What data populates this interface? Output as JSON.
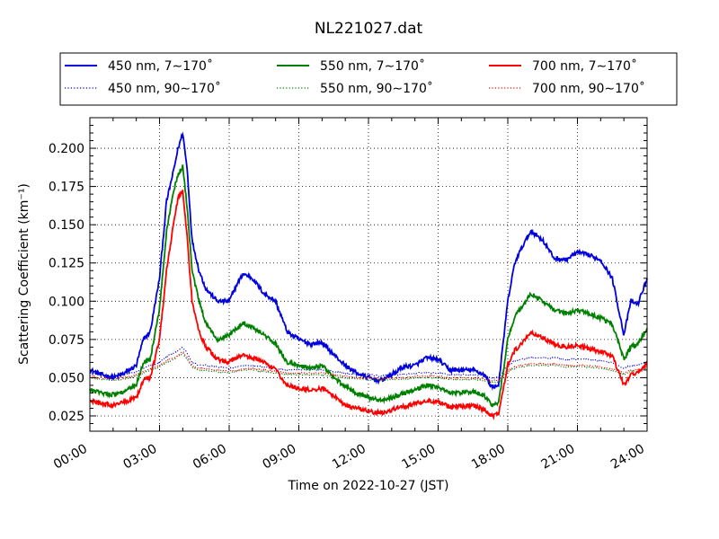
{
  "chart_data": {
    "type": "line",
    "title": "NL221027.dat",
    "xlabel": "Time on 2022-10-27 (JST)",
    "ylabel": "Scattering Coefficient (km⁻¹)",
    "xlim": [
      0,
      24
    ],
    "ylim": [
      0.015,
      0.22
    ],
    "xticks": [
      "00:00",
      "03:00",
      "06:00",
      "09:00",
      "12:00",
      "15:00",
      "18:00",
      "21:00",
      "24:00"
    ],
    "yticks": [
      "0.025",
      "0.050",
      "0.075",
      "0.100",
      "0.125",
      "0.150",
      "0.175",
      "0.200"
    ],
    "grid": true,
    "legend_position": "top",
    "x_hours": [
      0,
      0.5,
      1,
      1.5,
      2,
      2.3,
      2.6,
      3,
      3.3,
      3.6,
      3.8,
      4,
      4.2,
      4.4,
      4.7,
      5,
      5.5,
      6,
      6.3,
      6.6,
      7,
      7.5,
      8,
      8.5,
      9,
      9.5,
      10,
      10.5,
      11,
      11.5,
      12,
      12.5,
      13,
      13.5,
      14,
      14.5,
      15,
      15.5,
      16,
      16.5,
      17,
      17.3,
      17.6,
      18,
      18.3,
      18.6,
      19,
      19.5,
      20,
      20.5,
      21,
      21.5,
      22,
      22.5,
      23,
      23.3,
      23.6,
      24
    ],
    "series": [
      {
        "name": "450 nm, 7∼170˚",
        "color": "#0000dd",
        "style": "solid",
        "values": [
          0.055,
          0.052,
          0.05,
          0.053,
          0.058,
          0.075,
          0.08,
          0.115,
          0.165,
          0.185,
          0.2,
          0.21,
          0.185,
          0.14,
          0.12,
          0.108,
          0.1,
          0.1,
          0.11,
          0.118,
          0.115,
          0.105,
          0.1,
          0.08,
          0.075,
          0.072,
          0.073,
          0.065,
          0.058,
          0.053,
          0.05,
          0.048,
          0.052,
          0.057,
          0.058,
          0.063,
          0.062,
          0.055,
          0.055,
          0.055,
          0.052,
          0.044,
          0.045,
          0.1,
          0.125,
          0.135,
          0.146,
          0.14,
          0.128,
          0.127,
          0.132,
          0.13,
          0.127,
          0.115,
          0.078,
          0.1,
          0.098,
          0.115
        ]
      },
      {
        "name": "450 nm, 90∼170˚",
        "color": "#0000dd",
        "style": "dotted",
        "values": [
          0.053,
          0.052,
          0.05,
          0.052,
          0.054,
          0.056,
          0.058,
          0.06,
          0.064,
          0.066,
          0.068,
          0.07,
          0.066,
          0.06,
          0.058,
          0.058,
          0.057,
          0.056,
          0.057,
          0.058,
          0.058,
          0.057,
          0.056,
          0.055,
          0.055,
          0.055,
          0.055,
          0.054,
          0.053,
          0.052,
          0.052,
          0.051,
          0.052,
          0.052,
          0.053,
          0.053,
          0.053,
          0.052,
          0.052,
          0.052,
          0.051,
          0.05,
          0.05,
          0.058,
          0.061,
          0.062,
          0.063,
          0.063,
          0.063,
          0.062,
          0.062,
          0.062,
          0.061,
          0.06,
          0.056,
          0.058,
          0.058,
          0.06
        ]
      },
      {
        "name": "550 nm, 7∼170˚",
        "color": "#008000",
        "style": "solid",
        "values": [
          0.042,
          0.04,
          0.039,
          0.041,
          0.045,
          0.06,
          0.062,
          0.095,
          0.145,
          0.172,
          0.183,
          0.188,
          0.16,
          0.12,
          0.1,
          0.085,
          0.075,
          0.078,
          0.082,
          0.086,
          0.083,
          0.078,
          0.072,
          0.06,
          0.058,
          0.056,
          0.058,
          0.05,
          0.044,
          0.04,
          0.037,
          0.035,
          0.037,
          0.04,
          0.042,
          0.045,
          0.044,
          0.04,
          0.04,
          0.041,
          0.038,
          0.032,
          0.033,
          0.075,
          0.09,
          0.096,
          0.105,
          0.1,
          0.094,
          0.092,
          0.094,
          0.092,
          0.089,
          0.085,
          0.062,
          0.07,
          0.072,
          0.082
        ]
      },
      {
        "name": "550 nm, 90∼170˚",
        "color": "#008000",
        "style": "dotted",
        "values": [
          0.05,
          0.049,
          0.048,
          0.049,
          0.051,
          0.053,
          0.055,
          0.057,
          0.06,
          0.062,
          0.064,
          0.066,
          0.062,
          0.057,
          0.055,
          0.055,
          0.054,
          0.053,
          0.054,
          0.055,
          0.055,
          0.054,
          0.053,
          0.052,
          0.052,
          0.052,
          0.052,
          0.051,
          0.05,
          0.049,
          0.049,
          0.048,
          0.049,
          0.049,
          0.05,
          0.05,
          0.05,
          0.049,
          0.049,
          0.049,
          0.048,
          0.047,
          0.047,
          0.054,
          0.056,
          0.057,
          0.058,
          0.058,
          0.058,
          0.057,
          0.057,
          0.057,
          0.056,
          0.055,
          0.052,
          0.054,
          0.054,
          0.056
        ]
      },
      {
        "name": "700 nm, 7∼170˚",
        "color": "#ff0000",
        "style": "solid",
        "values": [
          0.035,
          0.033,
          0.032,
          0.034,
          0.037,
          0.048,
          0.05,
          0.075,
          0.12,
          0.15,
          0.168,
          0.172,
          0.14,
          0.1,
          0.08,
          0.07,
          0.062,
          0.06,
          0.063,
          0.065,
          0.063,
          0.06,
          0.055,
          0.045,
          0.043,
          0.042,
          0.043,
          0.038,
          0.032,
          0.03,
          0.028,
          0.027,
          0.029,
          0.031,
          0.033,
          0.035,
          0.034,
          0.031,
          0.031,
          0.032,
          0.029,
          0.025,
          0.026,
          0.058,
          0.068,
          0.072,
          0.08,
          0.076,
          0.072,
          0.07,
          0.071,
          0.069,
          0.067,
          0.064,
          0.045,
          0.052,
          0.053,
          0.06
        ]
      },
      {
        "name": "700 nm, 90∼170˚",
        "color": "#ff0000",
        "style": "dotted",
        "values": [
          0.051,
          0.05,
          0.049,
          0.05,
          0.052,
          0.054,
          0.056,
          0.058,
          0.061,
          0.063,
          0.065,
          0.067,
          0.063,
          0.058,
          0.056,
          0.056,
          0.055,
          0.054,
          0.055,
          0.056,
          0.056,
          0.055,
          0.054,
          0.053,
          0.053,
          0.053,
          0.053,
          0.052,
          0.051,
          0.05,
          0.05,
          0.049,
          0.05,
          0.05,
          0.051,
          0.051,
          0.051,
          0.05,
          0.05,
          0.05,
          0.049,
          0.048,
          0.048,
          0.055,
          0.057,
          0.058,
          0.059,
          0.059,
          0.059,
          0.058,
          0.058,
          0.058,
          0.057,
          0.056,
          0.053,
          0.055,
          0.055,
          0.057
        ]
      }
    ]
  }
}
